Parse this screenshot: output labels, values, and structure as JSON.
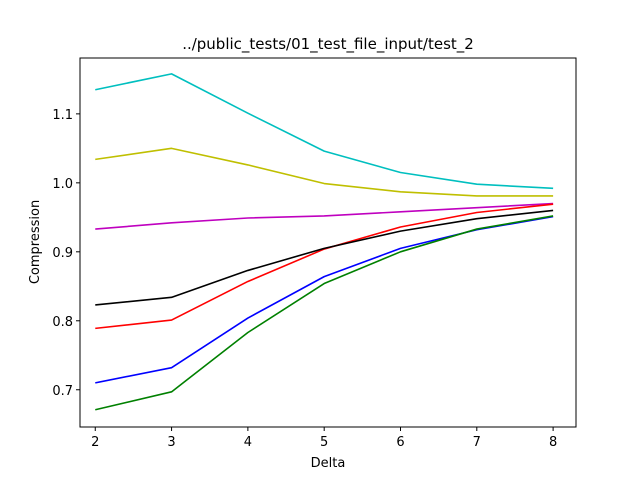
{
  "chart_data": {
    "type": "line",
    "title": "../public_tests/01_test_file_input/test_2",
    "xlabel": "Delta",
    "ylabel": "Compression",
    "x": [
      2,
      3,
      4,
      5,
      6,
      7,
      8
    ],
    "xlim": [
      1.8,
      8.3
    ],
    "ylim": [
      0.646,
      1.181
    ],
    "xticks": [
      2,
      3,
      4,
      5,
      6,
      7,
      8
    ],
    "yticks": [
      0.7,
      0.8,
      0.9,
      1.0,
      1.1
    ],
    "ytick_labels": [
      "0.7",
      "0.8",
      "0.9",
      "1.0",
      "1.1"
    ],
    "grid": false,
    "series": [
      {
        "color": "#00bfbf",
        "values": [
          1.135,
          1.158,
          1.101,
          1.046,
          1.015,
          0.998,
          0.992
        ]
      },
      {
        "color": "#bfbf00",
        "values": [
          1.034,
          1.05,
          1.026,
          0.999,
          0.987,
          0.981,
          0.981
        ]
      },
      {
        "color": "#bf00bf",
        "values": [
          0.933,
          0.942,
          0.949,
          0.952,
          0.958,
          0.964,
          0.97
        ]
      },
      {
        "color": "#ff0000",
        "values": [
          0.789,
          0.801,
          0.857,
          0.904,
          0.936,
          0.957,
          0.969
        ]
      },
      {
        "color": "#000000",
        "values": [
          0.823,
          0.834,
          0.873,
          0.905,
          0.93,
          0.948,
          0.96
        ]
      },
      {
        "color": "#0000ff",
        "values": [
          0.71,
          0.732,
          0.804,
          0.864,
          0.905,
          0.932,
          0.951
        ]
      },
      {
        "color": "#008000",
        "values": [
          0.671,
          0.697,
          0.783,
          0.854,
          0.9,
          0.933,
          0.952
        ]
      }
    ]
  }
}
